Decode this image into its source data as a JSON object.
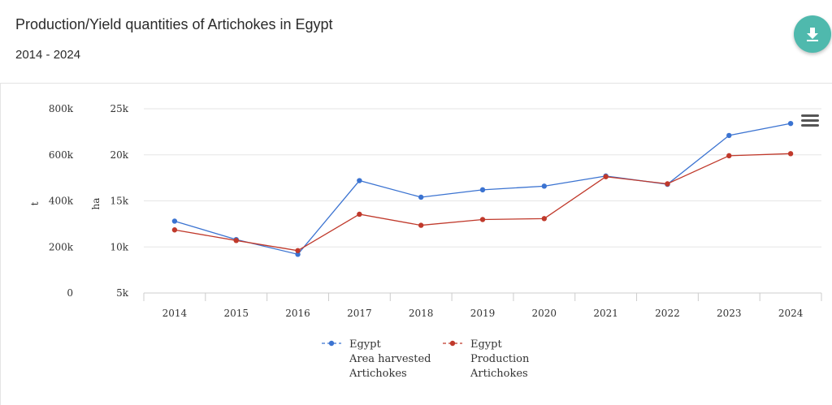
{
  "header": {
    "title": "Production/Yield quantities of Artichokes in Egypt",
    "subtitle": "2014 - 2024",
    "download_icon": "download-icon",
    "menu_icon": "hamburger-menu-icon"
  },
  "chart_data": {
    "type": "line",
    "categories": [
      "2014",
      "2015",
      "2016",
      "2017",
      "2018",
      "2019",
      "2020",
      "2021",
      "2022",
      "2023",
      "2024"
    ],
    "left_axis": {
      "title": "t",
      "ticks": [
        "0",
        "200k",
        "400k",
        "600k",
        "800k"
      ],
      "range": [
        0,
        800000
      ]
    },
    "right_axis": {
      "title": "ha",
      "ticks": [
        "5k",
        "10k",
        "15k",
        "20k",
        "25k"
      ],
      "range": [
        5000,
        25000
      ]
    },
    "grid": true,
    "legend_position": "bottom",
    "series": [
      {
        "name": [
          "Egypt",
          "Area harvested",
          "Artichokes"
        ],
        "axis": "ha",
        "color": "#3b73d1",
        "values": [
          12800,
          10800,
          9200,
          17200,
          15400,
          16200,
          16600,
          17700,
          16800,
          22100,
          23400
        ]
      },
      {
        "name": [
          "Egypt",
          "Production",
          "Artichokes"
        ],
        "axis": "t",
        "color": "#c0392b",
        "values": [
          274000,
          228000,
          184000,
          342000,
          294000,
          319000,
          323000,
          505000,
          474000,
          596000,
          605000
        ]
      }
    ]
  }
}
